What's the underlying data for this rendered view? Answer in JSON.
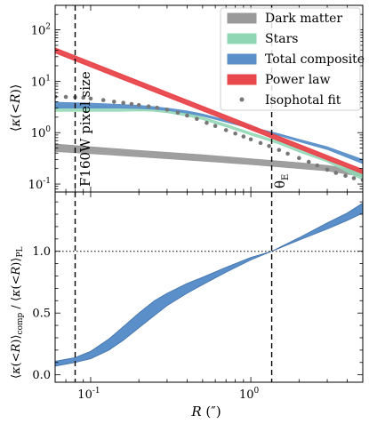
{
  "chart_data": [
    {
      "type": "area",
      "yscale": "log",
      "xscale": "log",
      "ylabel": "⟨κ(<R)⟩",
      "xlim": [
        0.06,
        5.0
      ],
      "ylim": [
        0.07,
        300
      ],
      "yticks": [
        0.1,
        1,
        10,
        100
      ],
      "ytick_labels": [
        "10⁻¹",
        "10⁰",
        "10¹",
        "10²"
      ],
      "legend_placement": "top-right",
      "legend": [
        "Dark matter",
        "Stars",
        "Total composite",
        "Power law",
        "Isophotal fit"
      ],
      "colors": {
        "dark_matter": "#9a9a9a",
        "stars": "#8fd6b4",
        "total": "#5a8fc9",
        "power_law": "#e8474c",
        "isophotal": "#777777"
      },
      "series": [
        {
          "name": "Dark matter",
          "x": [
            0.06,
            0.1,
            0.2,
            0.5,
            1.0,
            2.0,
            3.0,
            5.0
          ],
          "y_low": [
            0.43,
            0.39,
            0.34,
            0.28,
            0.24,
            0.2,
            0.18,
            0.14
          ],
          "y_high": [
            0.6,
            0.53,
            0.45,
            0.37,
            0.31,
            0.26,
            0.23,
            0.18
          ]
        },
        {
          "name": "Stars",
          "x": [
            0.06,
            0.1,
            0.15,
            0.2,
            0.25,
            0.3,
            0.4,
            0.5,
            0.7,
            1.0,
            1.5,
            2.0,
            3.0,
            5.0
          ],
          "y_low": [
            2.6,
            2.6,
            2.6,
            2.65,
            2.6,
            2.45,
            2.1,
            1.8,
            1.3,
            0.9,
            0.6,
            0.42,
            0.27,
            0.12
          ],
          "y_high": [
            3.4,
            3.3,
            3.2,
            3.1,
            2.95,
            2.75,
            2.35,
            2.0,
            1.45,
            1.0,
            0.67,
            0.48,
            0.31,
            0.15
          ]
        },
        {
          "name": "Total composite",
          "x": [
            0.06,
            0.1,
            0.15,
            0.2,
            0.25,
            0.3,
            0.4,
            0.5,
            0.7,
            1.0,
            1.5,
            2.0,
            3.0,
            5.0
          ],
          "y_low": [
            3.0,
            3.0,
            3.0,
            2.95,
            2.85,
            2.7,
            2.4,
            2.1,
            1.6,
            1.2,
            0.88,
            0.67,
            0.47,
            0.25
          ],
          "y_high": [
            3.9,
            3.75,
            3.55,
            3.4,
            3.2,
            3.0,
            2.65,
            2.3,
            1.75,
            1.3,
            0.95,
            0.74,
            0.53,
            0.3
          ]
        },
        {
          "name": "Power law",
          "x": [
            0.06,
            5.0
          ],
          "y_low": [
            36.0,
            0.16
          ],
          "y_high": [
            44.0,
            0.19
          ]
        },
        {
          "name": "Isophotal fit",
          "x": [
            0.06,
            0.07,
            0.08,
            0.09,
            0.1,
            0.12,
            0.14,
            0.16,
            0.18,
            0.2,
            0.23,
            0.26,
            0.3,
            0.35,
            0.4,
            0.46,
            0.53,
            0.6,
            0.7,
            0.8,
            0.9,
            1.0,
            1.15,
            1.3,
            1.5,
            1.7,
            2.0,
            2.3,
            2.6,
            3.0,
            3.4,
            3.9,
            4.4,
            5.0
          ],
          "y": [
            5.0,
            4.95,
            4.9,
            4.8,
            4.6,
            4.3,
            4.0,
            3.8,
            3.6,
            3.45,
            3.25,
            3.05,
            2.8,
            2.45,
            2.15,
            1.85,
            1.55,
            1.35,
            1.12,
            0.96,
            0.84,
            0.74,
            0.63,
            0.55,
            0.46,
            0.39,
            0.32,
            0.27,
            0.23,
            0.19,
            0.165,
            0.145,
            0.13,
            0.12
          ]
        }
      ],
      "annotations": [
        {
          "text": "F160W pixel size",
          "x": 0.08
        },
        {
          "text": "θ",
          "subscript": "E",
          "x": 1.35
        }
      ]
    },
    {
      "type": "area",
      "xscale": "log",
      "xlabel": "R (″)",
      "ylabel": "⟨κ(<R)⟩comp / ⟨κ(<R)⟩PL",
      "xlim": [
        0.06,
        5.0
      ],
      "ylim": [
        -0.06,
        1.48
      ],
      "yticks": [
        0.0,
        0.5,
        1.0
      ],
      "ytick_labels": [
        "0.0",
        "0.5",
        "1.0"
      ],
      "xtick_labels": [
        "10⁻¹",
        "10⁰"
      ],
      "reference_line": 1.0,
      "series": [
        {
          "name": "",
          "x": [
            0.06,
            0.08,
            0.1,
            0.13,
            0.16,
            0.2,
            0.25,
            0.3,
            0.4,
            0.5,
            0.7,
            1.0,
            1.35,
            2.0,
            3.0,
            4.0,
            5.0
          ],
          "y_low": [
            0.07,
            0.1,
            0.13,
            0.2,
            0.28,
            0.38,
            0.48,
            0.56,
            0.66,
            0.73,
            0.83,
            0.93,
            1.0,
            1.09,
            1.18,
            1.25,
            1.31
          ],
          "y_high": [
            0.11,
            0.14,
            0.19,
            0.29,
            0.39,
            0.5,
            0.6,
            0.66,
            0.74,
            0.79,
            0.87,
            0.95,
            1.0,
            1.11,
            1.23,
            1.31,
            1.39
          ]
        }
      ],
      "vertical_lines": [
        0.08,
        1.35
      ]
    }
  ]
}
